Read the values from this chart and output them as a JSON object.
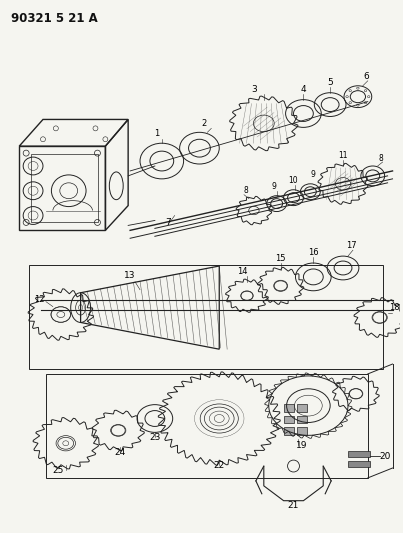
{
  "title": "90321 5 21 A",
  "bg_color": "#f5f5f0",
  "fig_width": 4.03,
  "fig_height": 5.33,
  "dpi": 100
}
